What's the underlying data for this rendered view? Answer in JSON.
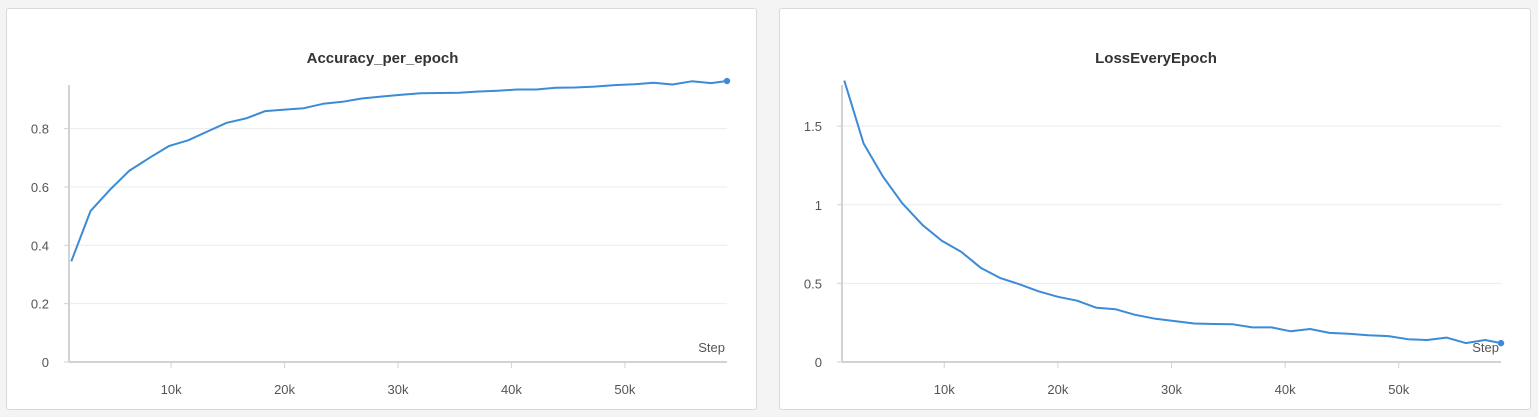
{
  "chart_data": [
    {
      "type": "line",
      "title": "Accuracy_per_epoch",
      "xlabel": "Step",
      "ylabel": "",
      "xlim": [
        1000,
        59000
      ],
      "ylim": [
        0,
        0.97
      ],
      "grid": true,
      "xticks": [
        10000,
        20000,
        30000,
        40000,
        50000
      ],
      "xtick_labels": [
        "10k",
        "20k",
        "30k",
        "40k",
        "50k"
      ],
      "yticks": [
        0,
        0.2,
        0.4,
        0.6,
        0.8
      ],
      "ytick_labels": [
        "0",
        "0.2",
        "0.4",
        "0.6",
        "0.8"
      ],
      "line_color": "#3b8bd6",
      "x": [
        1200,
        2900,
        4600,
        6300,
        8100,
        9800,
        11500,
        13200,
        14900,
        16600,
        18300,
        20000,
        21700,
        23400,
        25100,
        26800,
        28600,
        30300,
        32000,
        33700,
        35400,
        37100,
        38800,
        40500,
        42200,
        43900,
        45600,
        47300,
        49100,
        50800,
        52500,
        54200,
        55900,
        57600,
        59000
      ],
      "y": [
        0.345,
        0.518,
        0.59,
        0.655,
        0.7,
        0.74,
        0.76,
        0.79,
        0.82,
        0.835,
        0.86,
        0.865,
        0.87,
        0.885,
        0.892,
        0.903,
        0.91,
        0.916,
        0.921,
        0.922,
        0.923,
        0.927,
        0.93,
        0.934,
        0.934,
        0.94,
        0.941,
        0.944,
        0.949,
        0.952,
        0.957,
        0.951,
        0.962,
        0.956,
        0.963
      ]
    },
    {
      "type": "line",
      "title": "LossEveryEpoch",
      "xlabel": "Step",
      "ylabel": "",
      "xlim": [
        1000,
        59000
      ],
      "ylim": [
        0,
        1.8
      ],
      "grid": true,
      "xticks": [
        10000,
        20000,
        30000,
        40000,
        50000
      ],
      "xtick_labels": [
        "10k",
        "20k",
        "30k",
        "40k",
        "50k"
      ],
      "yticks": [
        0,
        0.5,
        1,
        1.5
      ],
      "ytick_labels": [
        "0",
        "0.5",
        "1",
        "1.5"
      ],
      "line_color": "#3b8bd6",
      "x": [
        1200,
        2900,
        4600,
        6300,
        8100,
        9800,
        11500,
        13200,
        14900,
        16600,
        18300,
        20000,
        21700,
        23400,
        25100,
        26800,
        28600,
        30300,
        32000,
        33700,
        35400,
        37100,
        38800,
        40500,
        42200,
        43900,
        45600,
        47300,
        49100,
        50800,
        52500,
        54200,
        55900,
        57600,
        59000
      ],
      "y": [
        1.79,
        1.39,
        1.18,
        1.01,
        0.87,
        0.77,
        0.7,
        0.6,
        0.535,
        0.495,
        0.45,
        0.415,
        0.39,
        0.345,
        0.335,
        0.3,
        0.275,
        0.26,
        0.245,
        0.242,
        0.24,
        0.22,
        0.22,
        0.195,
        0.21,
        0.185,
        0.18,
        0.17,
        0.165,
        0.145,
        0.14,
        0.155,
        0.12,
        0.14,
        0.12
      ]
    }
  ]
}
